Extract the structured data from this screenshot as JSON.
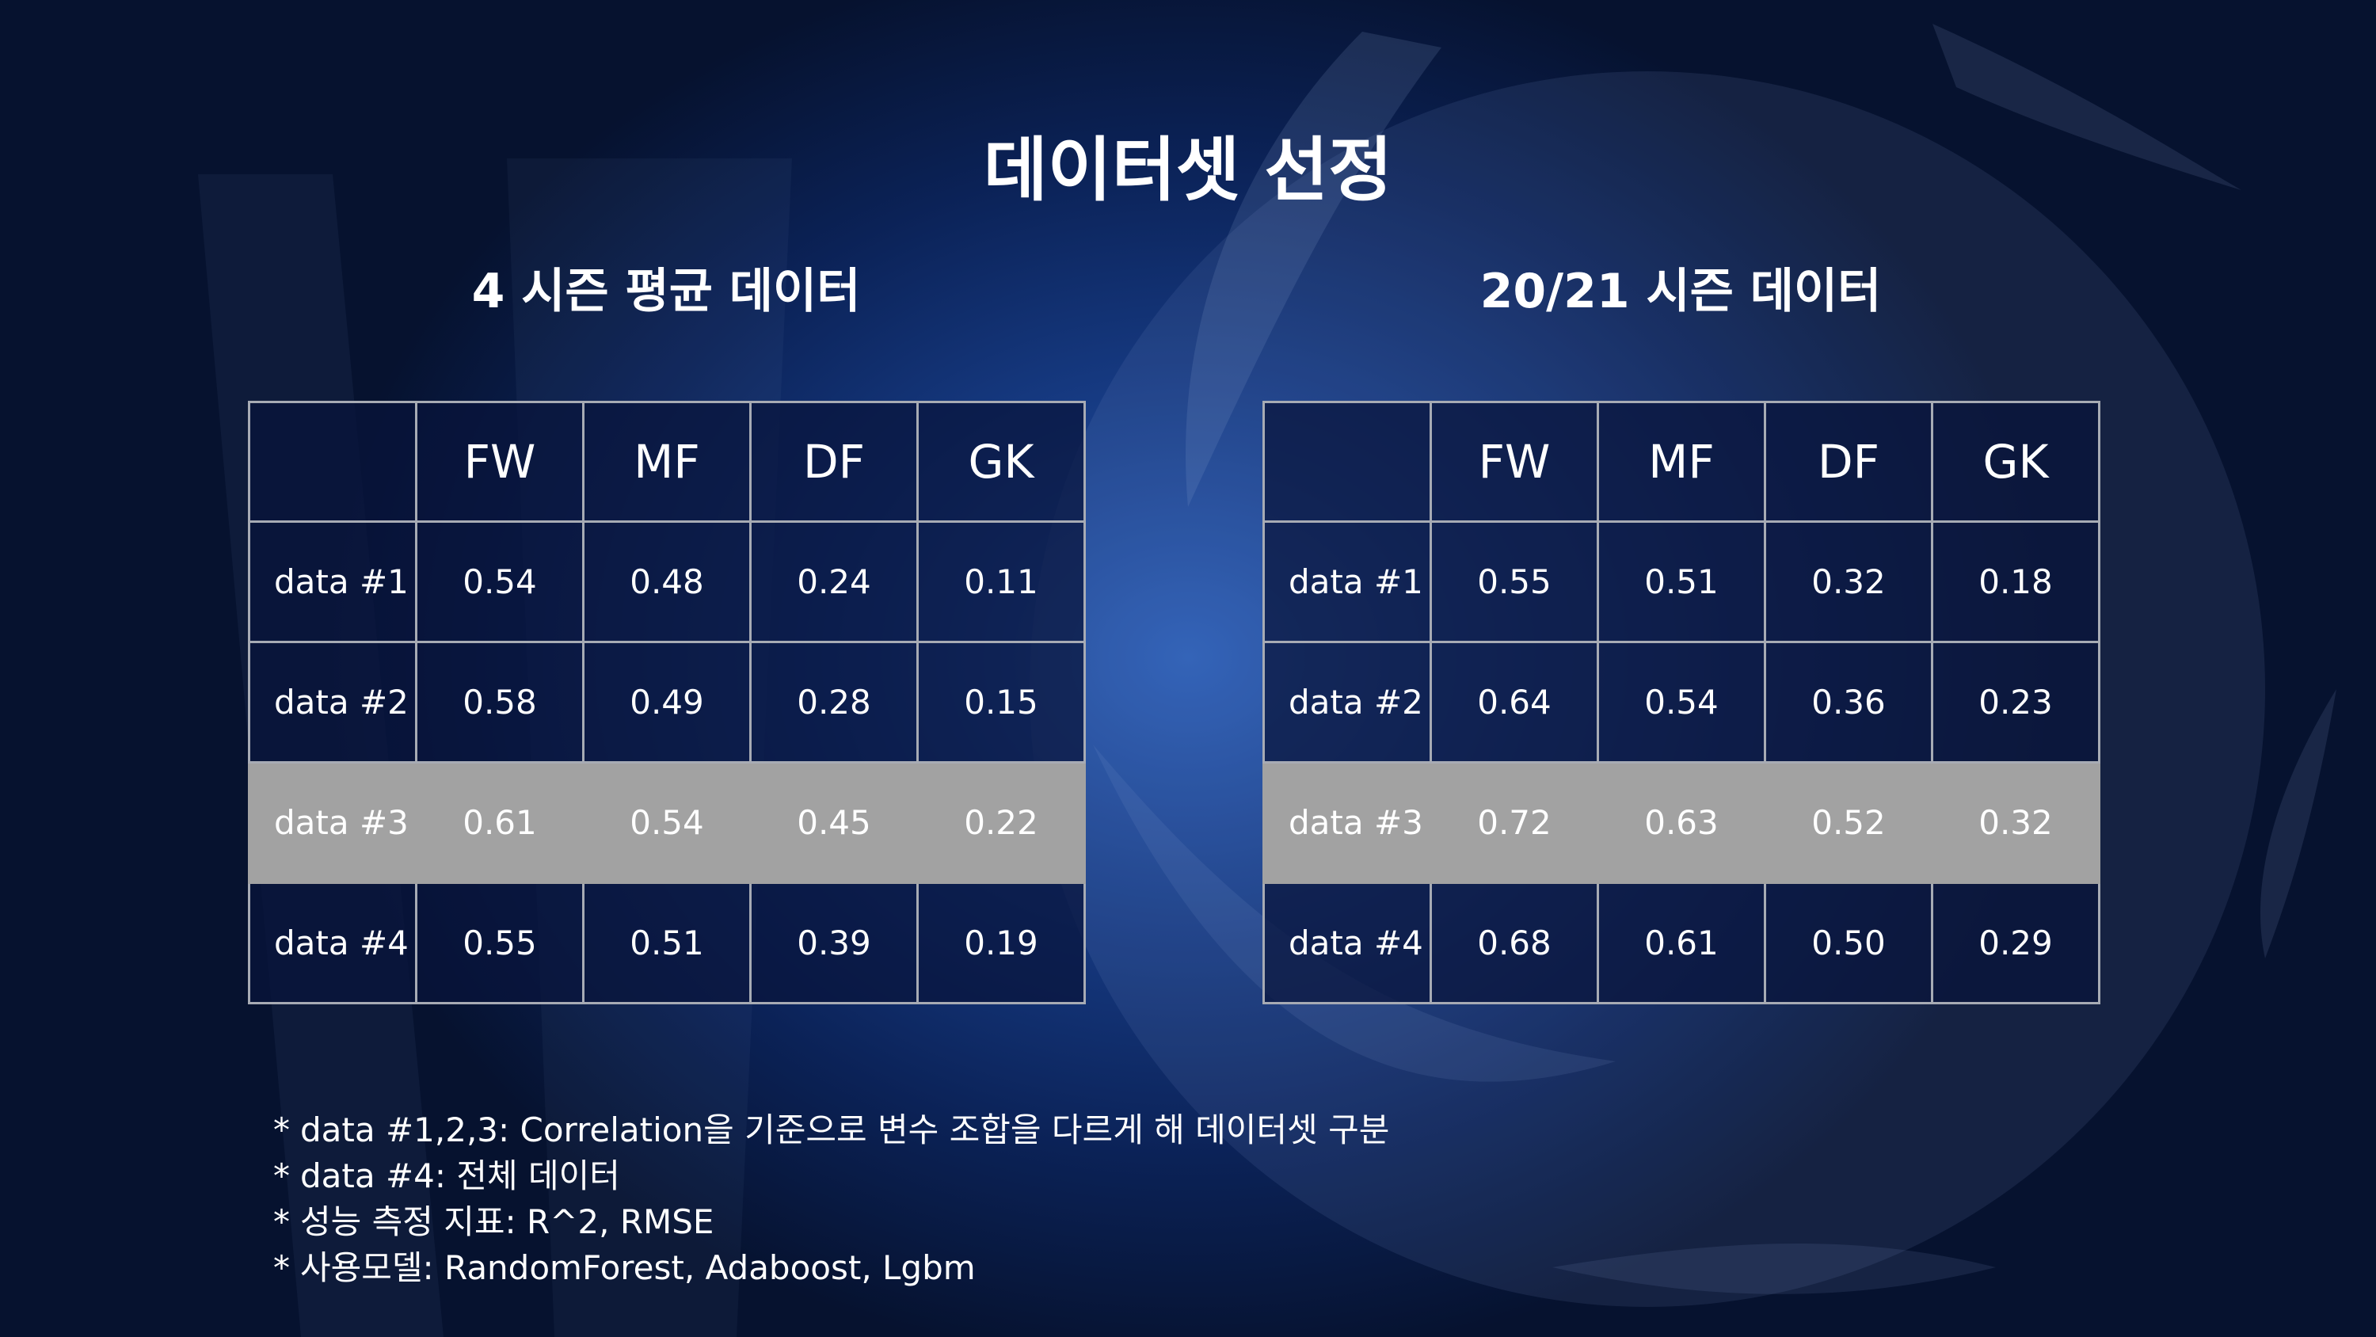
{
  "slide": {
    "title": "데이터셋 선정",
    "colors": {
      "background_center": "#2a5db6",
      "background_edge": "#06122f",
      "cell_dark": "#0b1c4a",
      "cell_highlight": "#a2a2a2",
      "grid_line": "#a7abb4",
      "text": "#ffffff"
    }
  },
  "left_table": {
    "caption": "4 시즌 평균 데이터",
    "columns": [
      "",
      "FW",
      "MF",
      "DF",
      "GK"
    ],
    "rows": [
      {
        "label": "data #1",
        "values": [
          "0.54",
          "0.48",
          "0.24",
          "0.11"
        ]
      },
      {
        "label": "data #2",
        "values": [
          "0.58",
          "0.49",
          "0.28",
          "0.15"
        ]
      },
      {
        "label": "data #3",
        "values": [
          "0.61",
          "0.54",
          "0.45",
          "0.22"
        ],
        "highlight": true
      },
      {
        "label": "data #4",
        "values": [
          "0.55",
          "0.51",
          "0.39",
          "0.19"
        ]
      }
    ]
  },
  "right_table": {
    "caption": "20/21 시즌 데이터",
    "columns": [
      "",
      "FW",
      "MF",
      "DF",
      "GK"
    ],
    "rows": [
      {
        "label": "data #1",
        "values": [
          "0.55",
          "0.51",
          "0.32",
          "0.18"
        ]
      },
      {
        "label": "data #2",
        "values": [
          "0.64",
          "0.54",
          "0.36",
          "0.23"
        ]
      },
      {
        "label": "data #3",
        "values": [
          "0.72",
          "0.63",
          "0.52",
          "0.32"
        ],
        "highlight": true
      },
      {
        "label": "data #4",
        "values": [
          "0.68",
          "0.61",
          "0.50",
          "0.29"
        ]
      }
    ]
  },
  "notes": {
    "bullet": "*",
    "lines": [
      "data #1,2,3: Correlation을 기준으로 변수 조합을 다르게 해 데이터셋 구분",
      "data #4: 전체 데이터",
      "성능 측정 지표: R^2, RMSE",
      "사용모델: RandomForest, Adaboost, Lgbm"
    ]
  }
}
